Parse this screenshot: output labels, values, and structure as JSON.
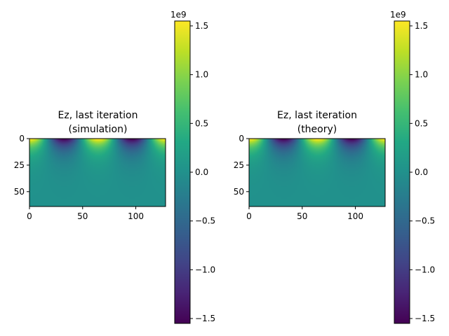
{
  "chart_data": [
    {
      "type": "heatmap",
      "title_line1": "Ez, last iteration",
      "title_line2": "(simulation)",
      "grid_size": [
        128,
        64
      ],
      "xlim": [
        0,
        128
      ],
      "ylim": [
        64,
        0
      ],
      "x_ticks": [
        "0",
        "50",
        "100"
      ],
      "x_tick_values": [
        0,
        50,
        100
      ],
      "y_ticks": [
        "0",
        "25",
        "50"
      ],
      "y_tick_values": [
        0,
        25,
        50
      ],
      "field": {
        "function": "A * sin(2*pi*(x/64 + 0.25)) * exp(-y/10)",
        "amplitude": 1550000000.0,
        "wavelength": 64,
        "decay_length": 10
      },
      "colormap": "viridis",
      "colorbar": {
        "vmin": -1550000000.0,
        "vmax": 1550000000.0,
        "exponent_label": "1e9",
        "ticks": [
          "1.5",
          "1.0",
          "0.5",
          "0.0",
          "−0.5",
          "−1.0",
          "−1.5"
        ],
        "tick_values": [
          1.5,
          1.0,
          0.5,
          0.0,
          -0.5,
          -1.0,
          -1.5
        ]
      }
    },
    {
      "type": "heatmap",
      "title_line1": "Ez, last iteration",
      "title_line2": "(theory)",
      "grid_size": [
        128,
        64
      ],
      "xlim": [
        0,
        128
      ],
      "ylim": [
        64,
        0
      ],
      "x_ticks": [
        "0",
        "50",
        "100"
      ],
      "x_tick_values": [
        0,
        50,
        100
      ],
      "y_ticks": [
        "0",
        "25",
        "50"
      ],
      "y_tick_values": [
        0,
        25,
        50
      ],
      "field": {
        "function": "A * sin(2*pi*(x/64 + 0.25)) * exp(-y/10)",
        "amplitude": 1550000000.0,
        "wavelength": 64,
        "decay_length": 10
      },
      "colormap": "viridis",
      "colorbar": {
        "vmin": -1550000000.0,
        "vmax": 1550000000.0,
        "exponent_label": "1e9",
        "ticks": [
          "1.5",
          "1.0",
          "0.5",
          "0.0",
          "−0.5",
          "−1.0",
          "−1.5"
        ],
        "tick_values": [
          1.5,
          1.0,
          0.5,
          0.0,
          -0.5,
          -1.0,
          -1.5
        ]
      }
    }
  ]
}
